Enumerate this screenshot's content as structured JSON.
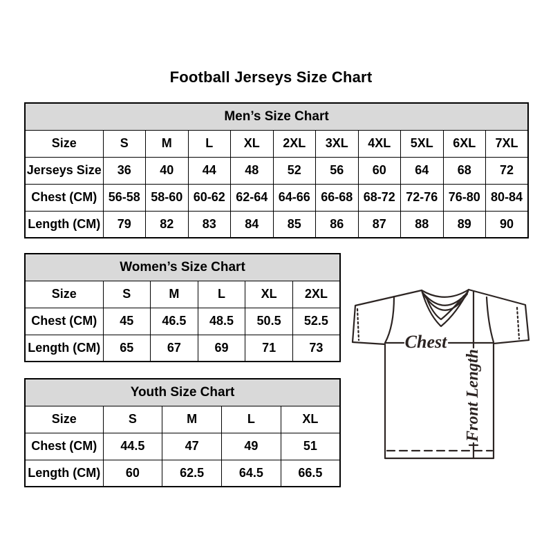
{
  "page": {
    "title": "Football Jerseys Size Chart"
  },
  "tables": {
    "men": {
      "title": "Men’s Size Chart",
      "rows": [
        [
          "Size",
          "S",
          "M",
          "L",
          "XL",
          "2XL",
          "3XL",
          "4XL",
          "5XL",
          "6XL",
          "7XL"
        ],
        [
          "Jerseys Size",
          "36",
          "40",
          "44",
          "48",
          "52",
          "56",
          "60",
          "64",
          "68",
          "72"
        ],
        [
          "Chest (CM)",
          "56-58",
          "58-60",
          "60-62",
          "62-64",
          "64-66",
          "66-68",
          "68-72",
          "72-76",
          "76-80",
          "80-84"
        ],
        [
          "Length (CM)",
          "79",
          "82",
          "83",
          "84",
          "85",
          "86",
          "87",
          "88",
          "89",
          "90"
        ]
      ]
    },
    "women": {
      "title": "Women’s Size Chart",
      "rows": [
        [
          "Size",
          "S",
          "M",
          "L",
          "XL",
          "2XL"
        ],
        [
          "Chest (CM)",
          "45",
          "46.5",
          "48.5",
          "50.5",
          "52.5"
        ],
        [
          "Length (CM)",
          "65",
          "67",
          "69",
          "71",
          "73"
        ]
      ]
    },
    "youth": {
      "title": "Youth Size Chart",
      "rows": [
        [
          "Size",
          "S",
          "M",
          "L",
          "XL"
        ],
        [
          "Chest (CM)",
          "44.5",
          "47",
          "49",
          "51"
        ],
        [
          "Length (CM)",
          "60",
          "62.5",
          "64.5",
          "66.5"
        ]
      ]
    }
  },
  "diagram": {
    "chest_label": "Chest",
    "front_length_label": "Front Length"
  },
  "colors": {
    "table_header_bg": "#d9d9d9",
    "table_border": "#000000",
    "text": "#000000",
    "diagram_line": "#2c2422",
    "background": "#ffffff"
  }
}
